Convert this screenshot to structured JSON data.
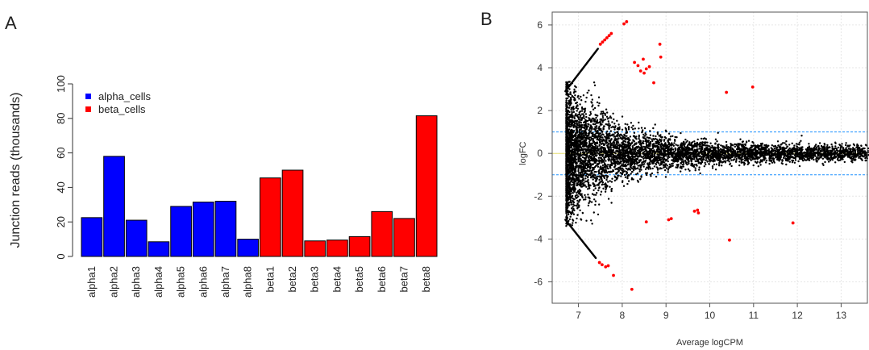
{
  "panels": {
    "a_label": "A",
    "b_label": "B"
  },
  "chart_data": [
    {
      "type": "bar",
      "panel": "A",
      "ylabel": "Junction reads (thousands)",
      "xlabel": "",
      "ylim": [
        0,
        100
      ],
      "yticks": [
        0,
        20,
        40,
        60,
        80,
        100
      ],
      "categories": [
        "alpha1",
        "alpha2",
        "alpha3",
        "alpha4",
        "alpha5",
        "alpha6",
        "alpha7",
        "alpha8",
        "beta1",
        "beta2",
        "beta3",
        "beta4",
        "beta5",
        "beta6",
        "beta7",
        "beta8"
      ],
      "series": [
        {
          "name": "alpha_cells",
          "color": "#0000ff",
          "values": [
            22.5,
            58,
            21,
            8.5,
            29,
            31.5,
            32,
            10,
            null,
            null,
            null,
            null,
            null,
            null,
            null,
            null
          ]
        },
        {
          "name": "beta_cells",
          "color": "#ff0000",
          "values": [
            null,
            null,
            null,
            null,
            null,
            null,
            null,
            null,
            45.5,
            50,
            9,
            9.5,
            11.5,
            26,
            22,
            81.5
          ]
        }
      ],
      "legend_position": "top-left",
      "grid": false
    },
    {
      "type": "scatter",
      "panel": "B",
      "xlabel": "Average logCPM",
      "ylabel": "logFC",
      "xlim": [
        6.4,
        13.6
      ],
      "ylim": [
        -7,
        6.6
      ],
      "xticks": [
        7,
        8,
        9,
        10,
        11,
        12,
        13
      ],
      "yticks": [
        -6,
        -4,
        -2,
        0,
        2,
        4,
        6
      ],
      "grid": true,
      "reference_lines": [
        {
          "y": 1,
          "color": "#1e90ff",
          "style": "dashed"
        },
        {
          "y": -1,
          "color": "#1e90ff",
          "style": "dashed"
        },
        {
          "y": 0,
          "color": "#e8e070",
          "style": "solid"
        }
      ],
      "colors": {
        "nonsignificant": "#000000",
        "significant": "#ff0000"
      },
      "significant_points": [
        [
          8.04,
          6.05
        ],
        [
          8.1,
          6.15
        ],
        [
          7.5,
          5.1
        ],
        [
          7.55,
          5.2
        ],
        [
          7.6,
          5.3
        ],
        [
          7.65,
          5.4
        ],
        [
          7.7,
          5.5
        ],
        [
          7.75,
          5.6
        ],
        [
          8.28,
          4.25
        ],
        [
          8.36,
          4.1
        ],
        [
          8.48,
          4.4
        ],
        [
          8.42,
          3.85
        ],
        [
          8.55,
          3.95
        ],
        [
          8.62,
          4.05
        ],
        [
          8.5,
          3.75
        ],
        [
          8.72,
          3.3
        ],
        [
          8.86,
          5.1
        ],
        [
          8.88,
          4.5
        ],
        [
          10.38,
          2.85
        ],
        [
          10.98,
          3.1
        ],
        [
          9.12,
          -3.05
        ],
        [
          9.06,
          -3.1
        ],
        [
          9.65,
          -2.7
        ],
        [
          9.72,
          -2.65
        ],
        [
          9.74,
          -2.78
        ],
        [
          8.55,
          -3.2
        ],
        [
          10.45,
          -4.05
        ],
        [
          11.9,
          -3.25
        ],
        [
          7.48,
          -5.1
        ],
        [
          7.54,
          -5.2
        ],
        [
          7.62,
          -5.3
        ],
        [
          7.68,
          -5.25
        ],
        [
          7.8,
          -5.7
        ],
        [
          8.22,
          -6.35
        ]
      ],
      "nonsignificant_point_count": 6500
    }
  ]
}
